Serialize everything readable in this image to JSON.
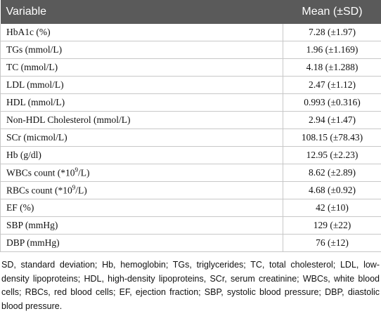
{
  "table": {
    "header": [
      "Variable",
      "Mean (±SD)"
    ],
    "rows": [
      [
        [
          "HbA1c (%)"
        ],
        "7.28 (±1.97)"
      ],
      [
        [
          "TGs (mmol/L)"
        ],
        "1.96 (±1.169)"
      ],
      [
        [
          "TC (mmol/L)"
        ],
        "4.18 (±1.288)"
      ],
      [
        [
          "LDL (mmol/L)"
        ],
        "2.47 (±1.12)"
      ],
      [
        [
          "HDL (mmol/L)"
        ],
        "0.993 (±0.316)"
      ],
      [
        [
          "Non-HDL Cholesterol (mmol/L)"
        ],
        "2.94 (±1.47)"
      ],
      [
        [
          "SCr (micmol/L)"
        ],
        "108.15 (±78.43)"
      ],
      [
        [
          "Hb (g/dl)"
        ],
        "12.95 (±2.23)"
      ],
      [
        [
          "WBCs count (*10",
          "9",
          "/L)"
        ],
        "8.62 (±2.89)"
      ],
      [
        [
          "RBCs count (*10",
          "9",
          "/L)"
        ],
        "4.68 (±0.92)"
      ],
      [
        [
          "EF (%)"
        ],
        "42 (±10)"
      ],
      [
        [
          "SBP (mmHg)"
        ],
        "129 (±22)"
      ],
      [
        [
          "DBP (mmHg)"
        ],
        "76 (±12)"
      ]
    ]
  },
  "footnote": "SD, standard deviation; Hb, hemoglobin; TGs, triglycerides; TC, total cholesterol; LDL, low-density lipoproteins; HDL, high-density lipoproteins, SCr, serum creatinine; WBCs, white blood cells; RBCs, red blood cells; EF, ejection fraction; SBP, systolic blood pressure; DBP, diastolic blood pressure."
}
